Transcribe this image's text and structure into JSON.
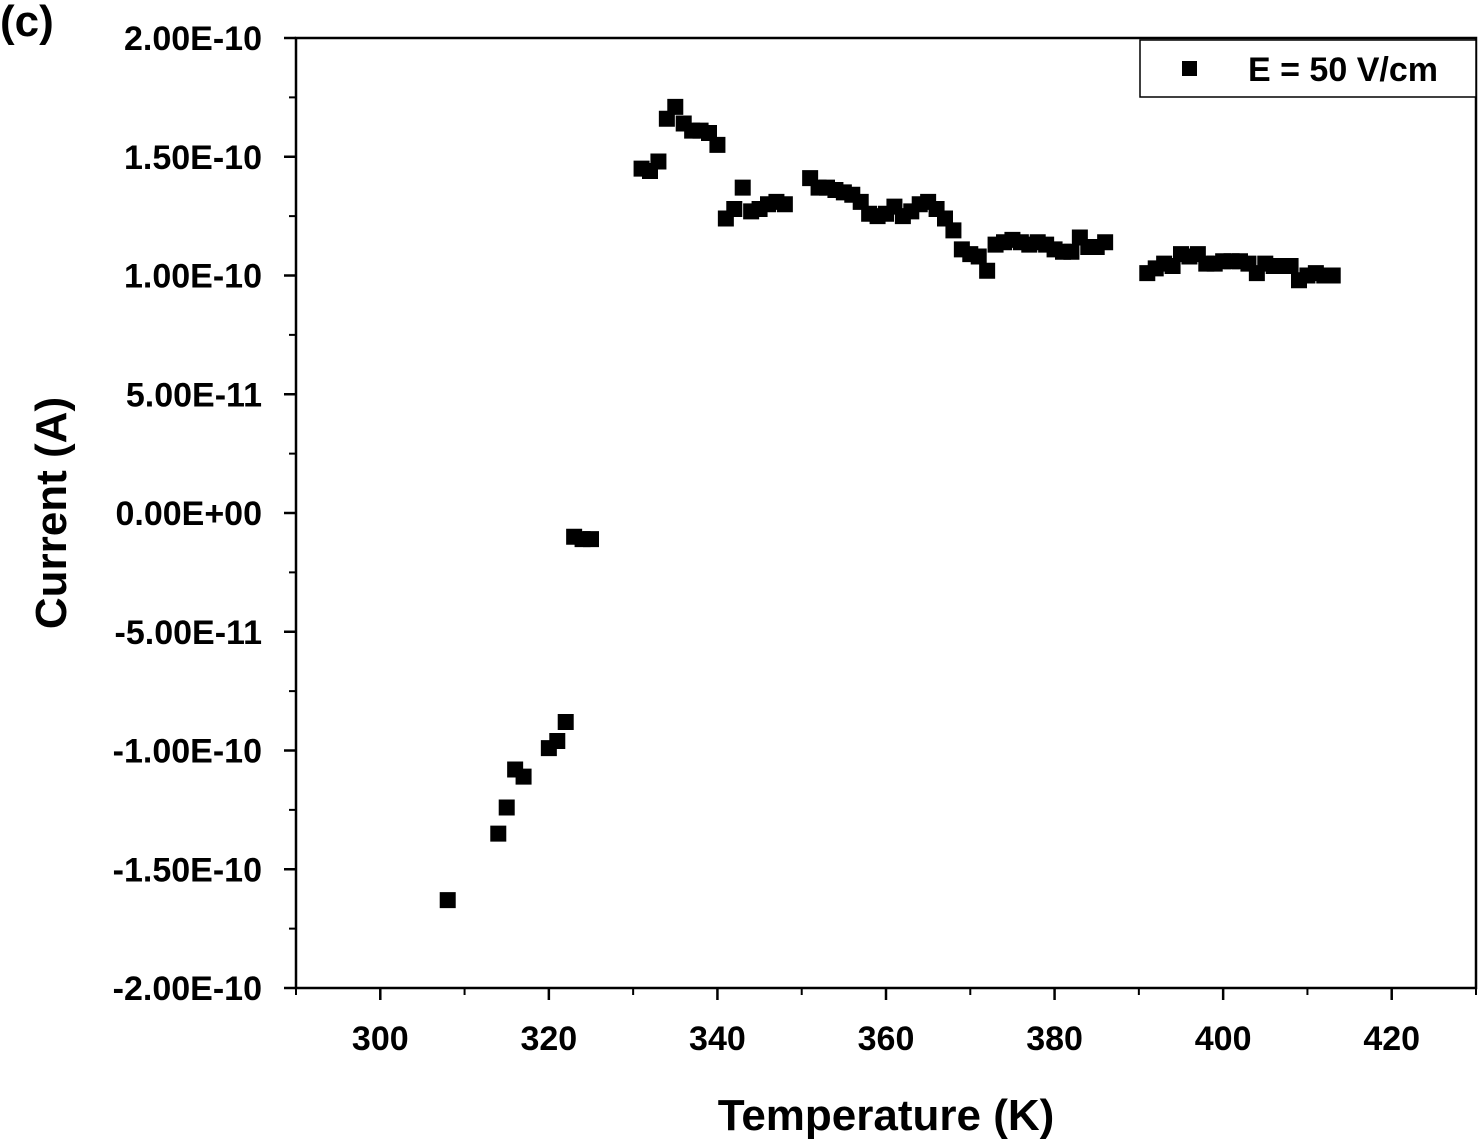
{
  "panel_label": "(c)",
  "chart_data": {
    "type": "scatter",
    "xlabel": "Temperature (K)",
    "ylabel": "Current (A)",
    "xlim": [
      290,
      430
    ],
    "ylim": [
      -2e-10,
      2e-10
    ],
    "x_ticks": [
      300,
      320,
      340,
      360,
      380,
      400,
      420
    ],
    "x_tick_labels": [
      "300",
      "320",
      "340",
      "360",
      "380",
      "400",
      "420"
    ],
    "y_ticks": [
      2e-10,
      1.5e-10,
      1e-10,
      5e-11,
      0,
      -5e-11,
      -1e-10,
      -1.5e-10,
      -2e-10
    ],
    "y_tick_labels": [
      "2.00E-10",
      "1.50E-10",
      "1.00E-10",
      "5.00E-11",
      "0.00E+00",
      "-5.00E-11",
      "-1.00E-10",
      "-1.50E-10",
      "-2.00E-10"
    ],
    "grid": false,
    "legend_position": "top-right",
    "marker_color": "#000000",
    "series": [
      {
        "name": "E = 50 V/cm",
        "marker": "square",
        "points": [
          [
            308,
            -1.63e-10
          ],
          [
            314,
            -1.35e-10
          ],
          [
            315,
            -1.24e-10
          ],
          [
            316,
            -1.08e-10
          ],
          [
            317,
            -1.11e-10
          ],
          [
            320,
            -9.9e-11
          ],
          [
            321,
            -9.6e-11
          ],
          [
            322,
            -8.8e-11
          ],
          [
            323,
            -1e-11
          ],
          [
            324,
            -1.1e-11
          ],
          [
            325,
            -1.1e-11
          ],
          [
            331,
            1.45e-10
          ],
          [
            332,
            1.44e-10
          ],
          [
            333,
            1.48e-10
          ],
          [
            334,
            1.66e-10
          ],
          [
            335,
            1.71e-10
          ],
          [
            336,
            1.64e-10
          ],
          [
            337,
            1.61e-10
          ],
          [
            338,
            1.61e-10
          ],
          [
            339,
            1.6e-10
          ],
          [
            340,
            1.55e-10
          ],
          [
            341,
            1.24e-10
          ],
          [
            342,
            1.28e-10
          ],
          [
            343,
            1.37e-10
          ],
          [
            344,
            1.27e-10
          ],
          [
            345,
            1.28e-10
          ],
          [
            346,
            1.3e-10
          ],
          [
            347,
            1.31e-10
          ],
          [
            348,
            1.3e-10
          ],
          [
            351,
            1.41e-10
          ],
          [
            352,
            1.37e-10
          ],
          [
            353,
            1.37e-10
          ],
          [
            354,
            1.36e-10
          ],
          [
            355,
            1.35e-10
          ],
          [
            356,
            1.34e-10
          ],
          [
            357,
            1.31e-10
          ],
          [
            358,
            1.26e-10
          ],
          [
            359,
            1.25e-10
          ],
          [
            360,
            1.26e-10
          ],
          [
            361,
            1.29e-10
          ],
          [
            362,
            1.25e-10
          ],
          [
            363,
            1.27e-10
          ],
          [
            364,
            1.3e-10
          ],
          [
            365,
            1.31e-10
          ],
          [
            366,
            1.28e-10
          ],
          [
            367,
            1.24e-10
          ],
          [
            368,
            1.19e-10
          ],
          [
            369,
            1.11e-10
          ],
          [
            370,
            1.09e-10
          ],
          [
            371,
            1.08e-10
          ],
          [
            372,
            1.02e-10
          ],
          [
            373,
            1.13e-10
          ],
          [
            374,
            1.14e-10
          ],
          [
            375,
            1.15e-10
          ],
          [
            376,
            1.14e-10
          ],
          [
            377,
            1.13e-10
          ],
          [
            378,
            1.14e-10
          ],
          [
            379,
            1.13e-10
          ],
          [
            380,
            1.11e-10
          ],
          [
            381,
            1.1e-10
          ],
          [
            382,
            1.1e-10
          ],
          [
            383,
            1.16e-10
          ],
          [
            384,
            1.12e-10
          ],
          [
            385,
            1.12e-10
          ],
          [
            386,
            1.14e-10
          ],
          [
            391,
            1.01e-10
          ],
          [
            392,
            1.03e-10
          ],
          [
            393,
            1.05e-10
          ],
          [
            394,
            1.04e-10
          ],
          [
            395,
            1.09e-10
          ],
          [
            396,
            1.08e-10
          ],
          [
            397,
            1.09e-10
          ],
          [
            398,
            1.05e-10
          ],
          [
            399,
            1.05e-10
          ],
          [
            400,
            1.06e-10
          ],
          [
            401,
            1.06e-10
          ],
          [
            402,
            1.06e-10
          ],
          [
            403,
            1.05e-10
          ],
          [
            404,
            1.01e-10
          ],
          [
            405,
            1.05e-10
          ],
          [
            406,
            1.04e-10
          ],
          [
            407,
            1.04e-10
          ],
          [
            408,
            1.04e-10
          ],
          [
            409,
            9.8e-11
          ],
          [
            410,
            1e-10
          ],
          [
            411,
            1.01e-10
          ],
          [
            412,
            1e-10
          ],
          [
            413,
            1e-10
          ]
        ]
      }
    ]
  }
}
